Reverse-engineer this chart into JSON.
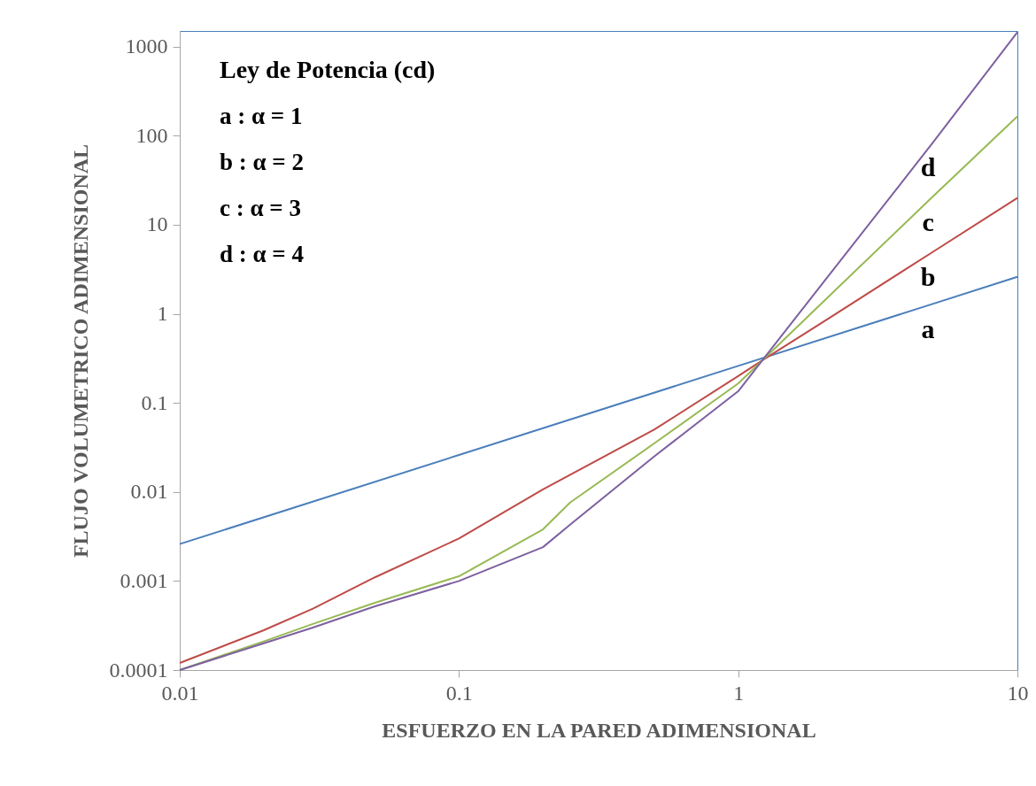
{
  "chart_data": {
    "type": "line",
    "xlabel": "ESFUERZO EN LA PARED ADIMENSIONAL",
    "ylabel": "FLUJO VOLUMETRICO ADIMENSIONAL",
    "log": "xy",
    "xlim": [
      0.01,
      10
    ],
    "xticks": [
      0.01,
      0.1,
      1,
      10
    ],
    "ylim": [
      0.0001,
      1500
    ],
    "yticks": [
      0.0001,
      0.001,
      0.01,
      0.1,
      1,
      10,
      100,
      1000
    ],
    "annotations": [
      "Ley de Potencia (cd)",
      "a : α = 1",
      "b : α = 2",
      "c : α = 3",
      "d : α = 4"
    ],
    "series": [
      {
        "name": "a",
        "color": "#4a7ebb",
        "x": [
          0.01,
          0.1,
          1,
          5,
          10
        ],
        "values": [
          0.0026,
          0.026,
          0.26,
          1.3,
          2.6
        ]
      },
      {
        "name": "b",
        "color": "#be4b48",
        "x": [
          0.01,
          0.02,
          0.03,
          0.05,
          0.1,
          0.2,
          0.5,
          1,
          1.22,
          2,
          5,
          10
        ],
        "values": [
          0.00012,
          0.00028,
          0.00049,
          0.0011,
          0.003,
          0.0107,
          0.05,
          0.2,
          0.3,
          0.8,
          5,
          20
        ]
      },
      {
        "name": "c",
        "color": "#98b954",
        "x": [
          0.01,
          0.02,
          0.03,
          0.05,
          0.1,
          0.2,
          0.25,
          0.5,
          1,
          1.22,
          2,
          5,
          10
        ],
        "values": [
          0.0001,
          0.00021,
          0.00033,
          0.00057,
          0.00113,
          0.0038,
          0.0076,
          0.035,
          0.165,
          0.3,
          1.33,
          21,
          165
        ]
      },
      {
        "name": "d",
        "color": "#7d60a0",
        "x": [
          0.01,
          0.02,
          0.03,
          0.05,
          0.1,
          0.2,
          0.25,
          0.5,
          1,
          1.22,
          2,
          5,
          10
        ],
        "values": [
          0.0001,
          0.0002,
          0.0003,
          0.00052,
          0.001,
          0.0024,
          0.0043,
          0.025,
          0.135,
          0.3,
          2.17,
          85,
          1450
        ]
      }
    ]
  }
}
